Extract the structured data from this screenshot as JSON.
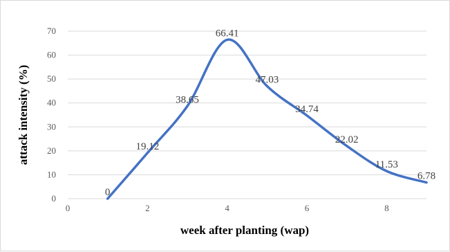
{
  "chart_data": {
    "type": "line",
    "smooth": true,
    "xlabel": "week after planting (wap)",
    "ylabel": "attack intensity (%)",
    "xlim": [
      0,
      9
    ],
    "ylim": [
      0,
      70
    ],
    "x_ticks": [
      0,
      2,
      4,
      6,
      8
    ],
    "y_ticks": [
      0,
      10,
      20,
      30,
      40,
      50,
      60,
      70
    ],
    "grid": "horizontal",
    "series": [
      {
        "color": "#4472c4",
        "x": [
          1,
          2,
          3,
          4,
          5,
          6,
          7,
          8,
          9
        ],
        "values": [
          0,
          19.12,
          38.65,
          66.41,
          47.03,
          34.74,
          22.02,
          11.53,
          6.78
        ],
        "labels": [
          "0",
          "19.12",
          "38.65",
          "66.41",
          "47.03",
          "34.74",
          "22.02",
          "11.53",
          "6.78"
        ]
      }
    ]
  }
}
